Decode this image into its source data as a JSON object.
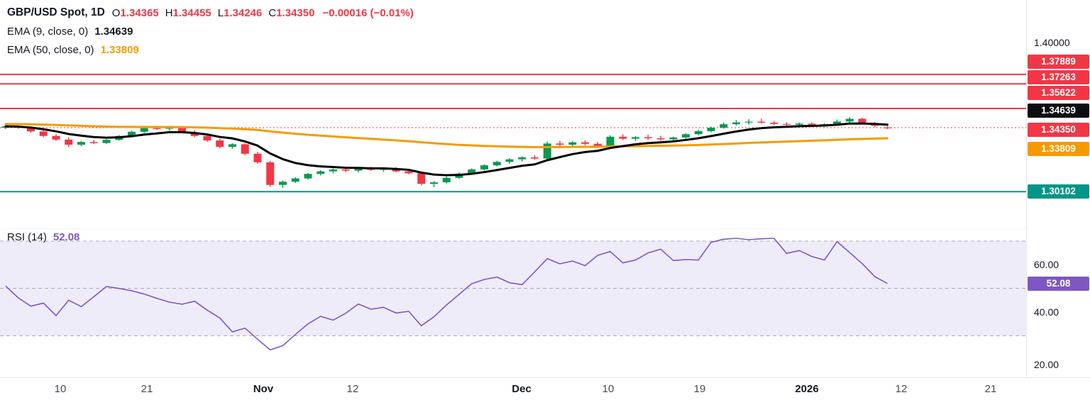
{
  "colors": {
    "up": "#089950",
    "down": "#f23645",
    "ema9": "#000000",
    "ema50": "#f79a00",
    "level_red": "#f23645",
    "level_teal": "#009688",
    "rsi_line": "#7e57c2",
    "rsi_band": "#efecfa",
    "axis_text": "#131722"
  },
  "legend": {
    "symbol": "GBP/USD Spot, 1D",
    "ohlc": [
      {
        "k": "O",
        "v": "1.34365"
      },
      {
        "k": "H",
        "v": "1.34455"
      },
      {
        "k": "L",
        "v": "1.34246"
      },
      {
        "k": "C",
        "v": "1.34350"
      }
    ],
    "change": "−0.00016 (−0.01%)",
    "ema9_label": "EMA (9, close, 0)",
    "ema9_value": "1.34639",
    "ema50_label": "EMA (50, close, 0)",
    "ema50_value": "1.33809",
    "rsi_label": "RSI (14)",
    "rsi_value": "52.08"
  },
  "chart_data": [
    {
      "type": "candlestick",
      "title": "GBP/USD Spot, 1D",
      "timeframe": "1D",
      "current": {
        "open": 1.34365,
        "high": 1.34455,
        "low": 1.34246,
        "close": 1.3435,
        "change": -0.00016,
        "change_pct": -0.01
      },
      "ylim": [
        1.287,
        1.4024
      ],
      "yticks_right": [
        "1.40000",
        "1.37889",
        "1.37263",
        "1.35622",
        "1.34639",
        "1.34350",
        "1.33809",
        "1.30102"
      ],
      "levels": [
        {
          "value": 1.37889,
          "color": "#f23645",
          "style": "solid",
          "role": "resistance"
        },
        {
          "value": 1.37263,
          "color": "#f23645",
          "style": "solid",
          "role": "resistance"
        },
        {
          "value": 1.35622,
          "color": "#f23645",
          "style": "solid",
          "role": "resistance"
        },
        {
          "value": 1.3435,
          "color": "#f23645",
          "style": "dotted",
          "role": "last-price"
        },
        {
          "value": 1.30102,
          "color": "#009688",
          "style": "solid",
          "role": "support"
        }
      ],
      "overlays": [
        {
          "name": "EMA (9, close, 0)",
          "period": 9,
          "last_value": 1.34639,
          "color": "#000000"
        },
        {
          "name": "EMA (50, close, 0)",
          "period": 50,
          "last_value": 1.33809,
          "color": "#f79a00",
          "seed": 1.346,
          "smooth": 80
        }
      ],
      "xticks": [
        {
          "label": "10",
          "x": 85
        },
        {
          "label": "21",
          "x": 207
        },
        {
          "label": "Nov",
          "x": 371,
          "major": true
        },
        {
          "label": "12",
          "x": 497
        },
        {
          "label": "Dec",
          "x": 735,
          "major": true
        },
        {
          "label": "10",
          "x": 857
        },
        {
          "label": "19",
          "x": 986
        },
        {
          "label": "2026",
          "x": 1137,
          "major": true
        },
        {
          "label": "12",
          "x": 1270
        },
        {
          "label": "21",
          "x": 1396
        }
      ],
      "candles": [
        [
          1.3435,
          1.3452,
          1.3426,
          1.3444
        ],
        [
          1.3444,
          1.345,
          1.3428,
          1.3434
        ],
        [
          1.3434,
          1.3441,
          1.3402,
          1.341
        ],
        [
          1.341,
          1.3418,
          1.3372,
          1.338
        ],
        [
          1.338,
          1.3392,
          1.3348,
          1.3356
        ],
        [
          1.3356,
          1.337,
          1.3305,
          1.3322
        ],
        [
          1.3322,
          1.3348,
          1.3312,
          1.334
        ],
        [
          1.334,
          1.3354,
          1.3326,
          1.3333
        ],
        [
          1.3333,
          1.336,
          1.3328,
          1.3354
        ],
        [
          1.3354,
          1.3386,
          1.3348,
          1.338
        ],
        [
          1.338,
          1.3415,
          1.3374,
          1.3408
        ],
        [
          1.3408,
          1.344,
          1.34,
          1.3432
        ],
        [
          1.3432,
          1.3448,
          1.342,
          1.3428
        ],
        [
          1.3428,
          1.3444,
          1.3416,
          1.3438
        ],
        [
          1.3438,
          1.3445,
          1.3398,
          1.3405
        ],
        [
          1.3405,
          1.3418,
          1.3372,
          1.338
        ],
        [
          1.338,
          1.3392,
          1.3342,
          1.335
        ],
        [
          1.335,
          1.3362,
          1.3298,
          1.3308
        ],
        [
          1.3308,
          1.3332,
          1.3295,
          1.3325
        ],
        [
          1.3325,
          1.3332,
          1.3252,
          1.3262
        ],
        [
          1.3262,
          1.3275,
          1.3195,
          1.3205
        ],
        [
          1.3205,
          1.3215,
          1.3042,
          1.3055
        ],
        [
          1.3055,
          1.3085,
          1.3035,
          1.3076
        ],
        [
          1.3076,
          1.3105,
          1.3068,
          1.3098
        ],
        [
          1.3098,
          1.3135,
          1.309,
          1.3128
        ],
        [
          1.3128,
          1.3152,
          1.3118,
          1.3145
        ],
        [
          1.3145,
          1.3165,
          1.3132,
          1.3158
        ],
        [
          1.3158,
          1.3172,
          1.314,
          1.315
        ],
        [
          1.315,
          1.3168,
          1.3138,
          1.3162
        ],
        [
          1.3162,
          1.3175,
          1.3148,
          1.3155
        ],
        [
          1.3155,
          1.317,
          1.3142,
          1.3165
        ],
        [
          1.3165,
          1.3172,
          1.3138,
          1.3145
        ],
        [
          1.3145,
          1.3158,
          1.3125,
          1.3132
        ],
        [
          1.3132,
          1.314,
          1.3052,
          1.3062
        ],
        [
          1.3062,
          1.308,
          1.304,
          1.3072
        ],
        [
          1.3072,
          1.311,
          1.3065,
          1.3102
        ],
        [
          1.3102,
          1.3138,
          1.3095,
          1.313
        ],
        [
          1.313,
          1.3165,
          1.3122,
          1.3158
        ],
        [
          1.3158,
          1.3192,
          1.315,
          1.3185
        ],
        [
          1.3185,
          1.3215,
          1.3178,
          1.3208
        ],
        [
          1.3208,
          1.3232,
          1.3195,
          1.3225
        ],
        [
          1.3225,
          1.3245,
          1.321,
          1.3238
        ],
        [
          1.3238,
          1.3252,
          1.3222,
          1.323
        ],
        [
          1.323,
          1.3342,
          1.3222,
          1.333
        ],
        [
          1.333,
          1.3348,
          1.331,
          1.3322
        ],
        [
          1.3322,
          1.3345,
          1.3308,
          1.3338
        ],
        [
          1.3338,
          1.3352,
          1.3318,
          1.3328
        ],
        [
          1.3328,
          1.334,
          1.3305,
          1.3315
        ],
        [
          1.3315,
          1.3385,
          1.3308,
          1.3375
        ],
        [
          1.3375,
          1.339,
          1.3352,
          1.3362
        ],
        [
          1.3362,
          1.338,
          1.3348,
          1.3372
        ],
        [
          1.3372,
          1.3388,
          1.3355,
          1.3365
        ],
        [
          1.3365,
          1.3382,
          1.3348,
          1.3358
        ],
        [
          1.3358,
          1.3375,
          1.3342,
          1.337
        ],
        [
          1.337,
          1.3398,
          1.3362,
          1.3392
        ],
        [
          1.3392,
          1.342,
          1.3385,
          1.3412
        ],
        [
          1.3412,
          1.3442,
          1.3405,
          1.3435
        ],
        [
          1.3435,
          1.347,
          1.3428,
          1.3458
        ],
        [
          1.3458,
          1.3486,
          1.3448,
          1.347
        ],
        [
          1.347,
          1.3492,
          1.3455,
          1.3475
        ],
        [
          1.3475,
          1.3495,
          1.3462,
          1.3468
        ],
        [
          1.3468,
          1.348,
          1.3452,
          1.346
        ],
        [
          1.346,
          1.3472,
          1.3445,
          1.3455
        ],
        [
          1.3455,
          1.3468,
          1.3442,
          1.3462
        ],
        [
          1.3462,
          1.347,
          1.3448,
          1.3455
        ],
        [
          1.3455,
          1.3465,
          1.3445,
          1.3458
        ],
        [
          1.3458,
          1.349,
          1.345,
          1.3476
        ],
        [
          1.3476,
          1.3505,
          1.3468,
          1.3494
        ],
        [
          1.3494,
          1.35,
          1.3458,
          1.3465
        ],
        [
          1.3465,
          1.3472,
          1.344,
          1.3448
        ],
        [
          1.34365,
          1.34455,
          1.34246,
          1.3435
        ]
      ]
    },
    {
      "type": "line",
      "name": "RSI (14)",
      "current": 52.08,
      "ylim": [
        13,
        73
      ],
      "bands": [
        70,
        30
      ],
      "mid": 50,
      "yticks": [
        "60.00",
        "40.00",
        "20.00"
      ],
      "values": [
        51.0,
        46.0,
        42.5,
        43.8,
        38.5,
        45.0,
        42.3,
        46.5,
        50.8,
        50.0,
        49.0,
        47.6,
        45.8,
        44.2,
        43.3,
        44.6,
        40.8,
        37.5,
        31.6,
        33.2,
        28.5,
        24.0,
        25.8,
        30.5,
        35.0,
        38.2,
        36.6,
        39.5,
        43.4,
        41.2,
        42.0,
        39.6,
        40.3,
        34.2,
        38.0,
        43.0,
        47.5,
        52.0,
        53.8,
        54.8,
        52.4,
        51.6,
        57.0,
        62.6,
        60.4,
        61.6,
        59.6,
        64.0,
        65.6,
        60.8,
        62.0,
        65.0,
        66.6,
        61.8,
        62.2,
        62.0,
        69.5,
        70.8,
        71.2,
        70.6,
        71.0,
        71.2,
        64.8,
        66.0,
        63.5,
        62.0,
        69.8,
        65.2,
        60.5,
        55.0,
        52.08
      ]
    }
  ]
}
